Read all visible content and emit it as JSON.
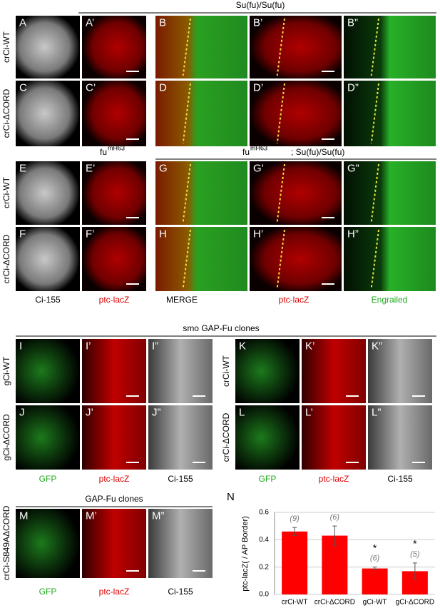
{
  "figure": {
    "headers": {
      "top": "Su(fu)/Su(fu)",
      "fu_left": {
        "base": "fu",
        "sup": "mH63"
      },
      "fu_right": {
        "base": "fu",
        "sup": "mH63",
        "suffix": "; Su(fu)/Su(fu)"
      },
      "smo": "smo GAP-Fu clones",
      "gap": "GAP-Fu clones"
    },
    "row_labels": [
      "crCi-WT",
      "crCi-ΔCORD",
      "crCi-WT",
      "crCi-ΔCORD",
      "gCi-WT",
      "gCi-ΔCORD",
      "crCi-WT",
      "crCi-ΔCORD",
      "crCi-S849AΔCORD"
    ],
    "panel_labels": [
      "A",
      "A’",
      "B",
      "B’",
      "B”",
      "C",
      "C’",
      "D",
      "D’",
      "D”",
      "E",
      "E’",
      "G",
      "G’",
      "G”",
      "F",
      "F’",
      "H",
      "H’",
      "H”",
      "I",
      "I’",
      "I”",
      "K",
      "K’",
      "K”",
      "J",
      "J’",
      "J”",
      "L",
      "L’",
      "L”",
      "M",
      "M’",
      "M”"
    ],
    "column_labels": [
      "Ci-155",
      "ptc-lacZ",
      "MERGE",
      "ptc-lacZ",
      "Engrailed",
      "GFP",
      "ptc-lacZ",
      "Ci-155",
      "GFP",
      "ptc-lacZ",
      "Ci-155",
      "GFP",
      "ptc-lacZ",
      "Ci-155"
    ]
  },
  "chart_data": {
    "type": "bar",
    "panel_label": "N",
    "y_label": "ptc-lacZ( / AP Border)",
    "categories": [
      "crCi-WT",
      "crCi-ΔCORD",
      "gCi-WT",
      "gCi-ΔCORD"
    ],
    "values": [
      0.46,
      0.43,
      0.19,
      0.17
    ],
    "errors": [
      0.03,
      0.07,
      0.01,
      0.06
    ],
    "n_labels": [
      "(9)",
      "(6)",
      "(6)",
      "(5)"
    ],
    "significance": [
      null,
      null,
      "*",
      "*"
    ],
    "color": "#ff0000",
    "ylim": [
      0,
      0.6
    ],
    "yticks": [
      {
        "value": 0,
        "label": "0.0"
      },
      0.2,
      0.4,
      0.6
    ],
    "grid": true
  }
}
